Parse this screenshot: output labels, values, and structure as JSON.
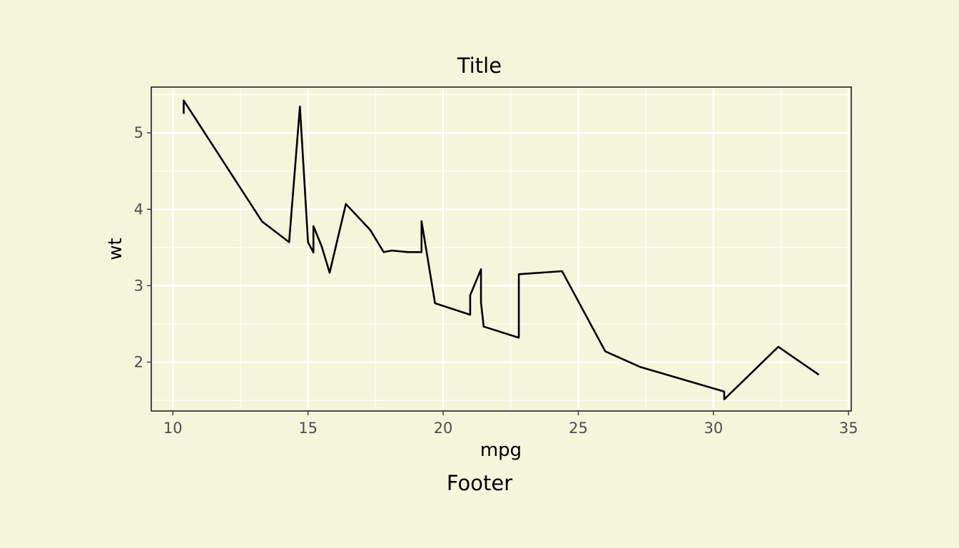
{
  "chart_data": {
    "type": "line",
    "title": "Title",
    "caption": "Footer",
    "xlabel": "mpg",
    "ylabel": "wt",
    "xlim": [
      9.2,
      35.1
    ],
    "ylim": [
      1.36,
      5.6
    ],
    "xticks": [
      10,
      15,
      20,
      25,
      30,
      35
    ],
    "xtick_labels": [
      "10",
      "15",
      "20",
      "25",
      "30",
      "35"
    ],
    "yticks": [
      2,
      3,
      4,
      5
    ],
    "ytick_labels": [
      "2",
      "3",
      "4",
      "5"
    ],
    "grid": true,
    "colors": {
      "background": "#F5F5DC",
      "line": "#000000",
      "grid": "#FFFFFF",
      "border": "#000000",
      "tick_label": "#4D4D4D"
    },
    "series": [
      {
        "x": [
          10.4,
          10.4,
          13.3,
          14.3,
          14.7,
          15.0,
          15.2,
          15.2,
          15.5,
          15.8,
          16.4,
          17.3,
          17.8,
          18.1,
          18.7,
          19.2,
          19.2,
          19.7,
          21.0,
          21.0,
          21.4,
          21.4,
          21.5,
          22.8,
          22.8,
          24.4,
          26.0,
          27.3,
          30.4,
          30.4,
          32.4,
          33.9
        ],
        "y": [
          5.25,
          5.424,
          3.84,
          3.57,
          5.345,
          3.57,
          3.435,
          3.78,
          3.52,
          3.17,
          4.07,
          3.73,
          3.44,
          3.46,
          3.44,
          3.44,
          3.845,
          2.77,
          2.62,
          2.875,
          3.215,
          2.78,
          2.465,
          2.32,
          3.15,
          3.19,
          2.14,
          1.935,
          1.615,
          1.513,
          2.2,
          1.835
        ]
      }
    ]
  }
}
